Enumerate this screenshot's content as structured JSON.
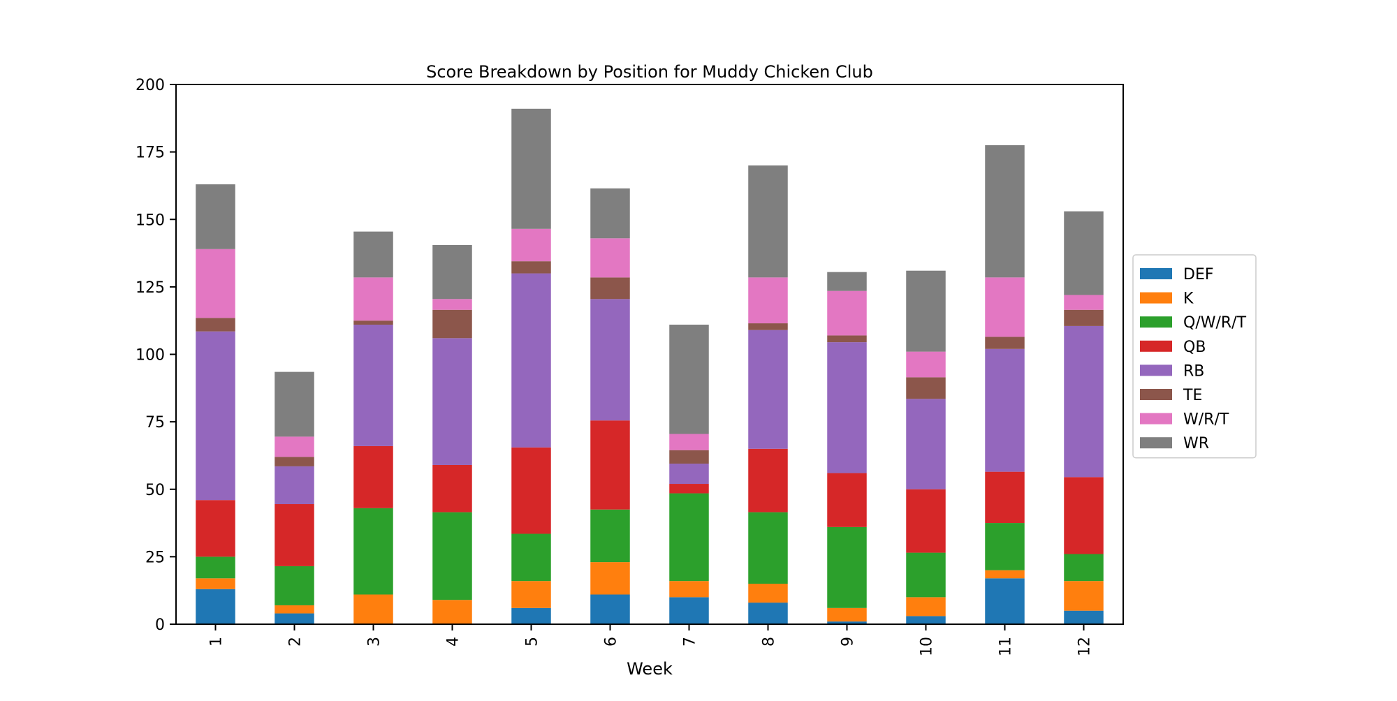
{
  "chart_data": {
    "type": "bar",
    "stacked": true,
    "title": "Score Breakdown by Position for Muddy Chicken Club",
    "xlabel": "Week",
    "ylabel": "",
    "categories": [
      "1",
      "2",
      "3",
      "4",
      "5",
      "6",
      "7",
      "8",
      "9",
      "10",
      "11",
      "12"
    ],
    "ylim": [
      0,
      200
    ],
    "yticks": [
      0,
      25,
      50,
      75,
      100,
      125,
      150,
      175,
      200
    ],
    "grid": false,
    "legend_position": "right",
    "series": [
      {
        "name": "DEF",
        "color": "#1f77b4",
        "values": [
          13,
          4,
          0,
          0,
          6,
          11,
          10,
          8,
          1,
          3,
          17,
          5
        ]
      },
      {
        "name": "K",
        "color": "#ff7f0e",
        "values": [
          4,
          3,
          11,
          9,
          10,
          12,
          6,
          7,
          5,
          7,
          3,
          11
        ]
      },
      {
        "name": "Q/W/R/T",
        "color": "#2ca02c",
        "values": [
          8,
          14.5,
          32,
          32.5,
          17.5,
          19.5,
          32.5,
          26.5,
          30,
          16.5,
          17.5,
          10
        ]
      },
      {
        "name": "QB",
        "color": "#d62728",
        "values": [
          21,
          23,
          23,
          17.5,
          32,
          33,
          3.5,
          23.5,
          20,
          23.5,
          19,
          28.5
        ]
      },
      {
        "name": "RB",
        "color": "#9467bd",
        "values": [
          62.5,
          14,
          45,
          47,
          64.5,
          45,
          7.5,
          44,
          48.5,
          33.5,
          45.5,
          56
        ]
      },
      {
        "name": "TE",
        "color": "#8c564b",
        "values": [
          5,
          3.5,
          1.5,
          10.5,
          4.5,
          8,
          5,
          2.5,
          2.5,
          8,
          4.5,
          6
        ]
      },
      {
        "name": "W/R/T",
        "color": "#e377c2",
        "values": [
          25.5,
          7.5,
          16,
          4,
          12,
          14.5,
          6,
          17,
          16.5,
          9.5,
          22,
          5.5
        ]
      },
      {
        "name": "WR",
        "color": "#7f7f7f",
        "values": [
          24,
          24,
          17,
          20,
          44.5,
          18.5,
          40.5,
          41.5,
          7,
          30,
          49,
          31
        ]
      }
    ]
  }
}
